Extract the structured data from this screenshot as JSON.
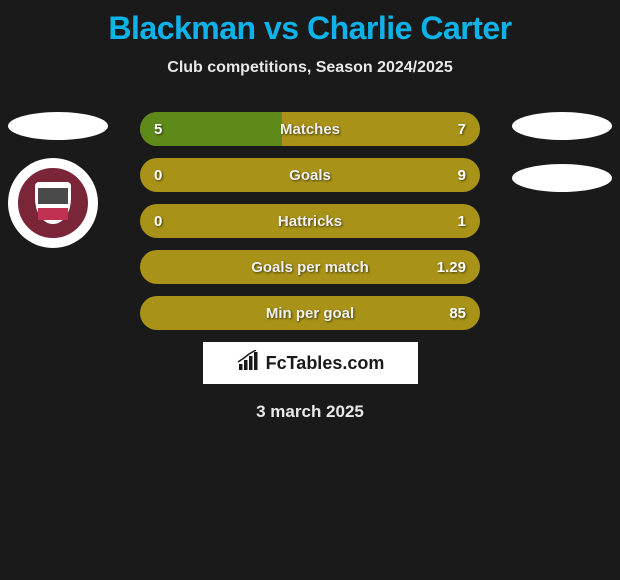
{
  "title": "Blackman vs Charlie Carter",
  "subtitle": "Club competitions, Season 2024/2025",
  "colors": {
    "background": "#1a1a1a",
    "title_color": "#0db3e8",
    "stat_bg": "#a89318",
    "stat_fill_left": "#5e8a1a",
    "badge_white": "#ffffff",
    "crest_maroon": "#7a2638"
  },
  "badges": {
    "left_oval": true,
    "left_crest": true,
    "right_oval_1": true,
    "right_oval_2": true
  },
  "stats": [
    {
      "label": "Matches",
      "left_value": "5",
      "right_value": "7",
      "left_pct": 41.67
    },
    {
      "label": "Goals",
      "left_value": "0",
      "right_value": "9",
      "left_pct": 0
    },
    {
      "label": "Hattricks",
      "left_value": "0",
      "right_value": "1",
      "left_pct": 0
    },
    {
      "label": "Goals per match",
      "left_value": "",
      "right_value": "1.29",
      "left_pct": 0
    },
    {
      "label": "Min per goal",
      "left_value": "",
      "right_value": "85",
      "left_pct": 0
    }
  ],
  "footer": {
    "brand": "FcTables.com",
    "date": "3 march 2025"
  }
}
